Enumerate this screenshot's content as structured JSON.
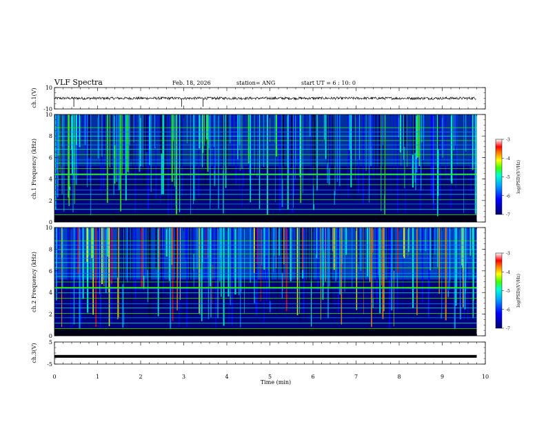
{
  "header": {
    "title": "VLF Spectra",
    "date": "Feb. 18, 2026",
    "station": "station= ANG",
    "start_ut": "start UT =  6 : 10: 0"
  },
  "chart_data": [
    {
      "type": "line",
      "name": "ch1-waveform",
      "title": "",
      "xlabel": "",
      "ylabel": "ch.1(V)",
      "xlim": [
        0,
        10
      ],
      "ylim": [
        -10,
        10
      ],
      "ytick_labels": [
        "10",
        "-10"
      ],
      "series": [
        {
          "name": "ch.1",
          "baseline": 0,
          "amplitude": 1.2
        }
      ]
    },
    {
      "type": "heatmap",
      "name": "ch1-spectrogram",
      "title": "",
      "xlabel": "",
      "ylabel": "ch.1 Frequency (kHz)",
      "xlim": [
        0,
        10
      ],
      "ylim": [
        0,
        10
      ],
      "ytick_labels": [
        "0",
        "2",
        "4",
        "6",
        "8",
        "10"
      ],
      "colorbar": {
        "label": "log(PSD)(V²/Hz)",
        "range": [
          -7,
          -3
        ],
        "tick_labels": [
          "-3",
          "-4",
          "-5",
          "-6",
          "-7"
        ]
      }
    },
    {
      "type": "heatmap",
      "name": "ch2-spectrogram",
      "title": "",
      "xlabel": "",
      "ylabel": "ch.2 Frequency (kHz)",
      "xlim": [
        0,
        10
      ],
      "ylim": [
        0,
        10
      ],
      "ytick_labels": [
        "0",
        "2",
        "4",
        "6",
        "8",
        "10"
      ],
      "colorbar": {
        "label": "log(PSD)(V²/Hz)",
        "range": [
          -7,
          -3
        ],
        "tick_labels": [
          "-3",
          "-4",
          "-5",
          "-6",
          "-7"
        ]
      }
    },
    {
      "type": "line",
      "name": "ch3-waveform",
      "title": "",
      "xlabel": "Time (min)",
      "ylabel": "ch.3(V)",
      "xlim": [
        0,
        10
      ],
      "ylim": [
        -5,
        5
      ],
      "ytick_labels": [
        "5",
        "-5"
      ],
      "series": [
        {
          "name": "ch.3",
          "baseline": -1.5,
          "amplitude": 0.2
        }
      ]
    }
  ],
  "xaxis": {
    "label": "Time (min)",
    "tick_labels": [
      "0",
      "1",
      "2",
      "3",
      "4",
      "5",
      "6",
      "7",
      "8",
      "9",
      "10"
    ],
    "data_end": 9.8
  },
  "colors": {
    "cmap": [
      "#00007a",
      "#0000ff",
      "#0098ff",
      "#00ffd0",
      "#38ff00",
      "#ffff00",
      "#ff8000",
      "#ff0000",
      "#ffffff"
    ],
    "line": "#000000"
  }
}
